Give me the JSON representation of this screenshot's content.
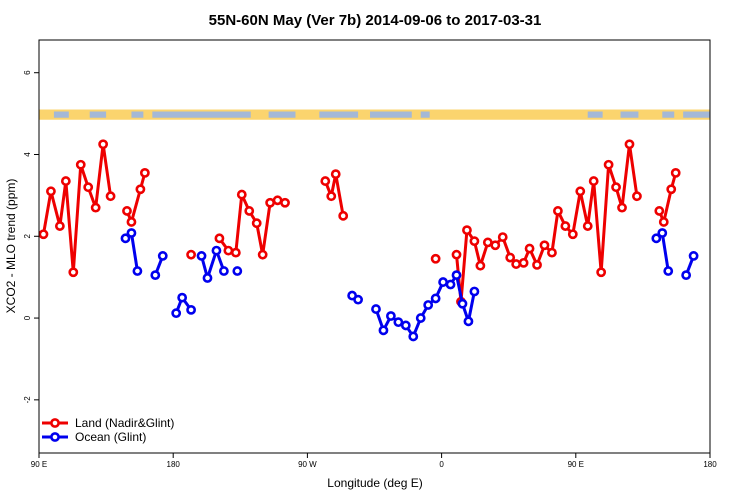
{
  "chart_data": {
    "type": "line",
    "title": "55N-60N May (Ver 7b)   2014-09-06 to 2017-03-31",
    "xlabel": "Longitude (deg E)",
    "ylabel": "XCO2 - MLO trend (ppm)",
    "xlim": [
      90,
      540
    ],
    "ylim": [
      -3.3,
      6.8
    ],
    "x_ticks": [
      {
        "value": 90,
        "label": "90 E"
      },
      {
        "value": 180,
        "label": "180"
      },
      {
        "value": 270,
        "label": "90 W"
      },
      {
        "value": 360,
        "label": "0"
      },
      {
        "value": 450,
        "label": "90 E"
      },
      {
        "value": 540,
        "label": "180"
      }
    ],
    "y_ticks": [
      {
        "value": -2,
        "label": "-2"
      },
      {
        "value": 0,
        "label": "0"
      },
      {
        "value": 2,
        "label": "2"
      },
      {
        "value": 4,
        "label": "4"
      },
      {
        "value": 6,
        "label": "6"
      }
    ],
    "grid": false,
    "legend_position": "bottom-left",
    "band": {
      "y_range": [
        4.85,
        5.1
      ],
      "land_color": "#fbd46e",
      "ocean_color": "#a4b8d6"
    },
    "series": [
      {
        "name": "Land (Nadir&Glint)",
        "color": "#ee0000",
        "segments": [
          [
            [
              93,
              2.05
            ],
            [
              98,
              3.1
            ],
            [
              104,
              2.25
            ],
            [
              108,
              3.35
            ],
            [
              113,
              1.12
            ],
            [
              118,
              3.75
            ],
            [
              123,
              3.2
            ],
            [
              128,
              2.7
            ],
            [
              133,
              4.25
            ],
            [
              138,
              2.98
            ]
          ],
          [
            [
              149,
              2.62
            ],
            [
              152,
              2.35
            ],
            [
              158,
              3.15
            ],
            [
              161,
              3.55
            ]
          ],
          [
            [
              192,
              1.55
            ]
          ],
          [
            [
              211,
              1.95
            ],
            [
              217,
              1.65
            ],
            [
              222,
              1.6
            ],
            [
              226,
              3.02
            ],
            [
              231,
              2.62
            ],
            [
              236,
              2.32
            ],
            [
              240,
              1.55
            ],
            [
              245,
              2.82
            ],
            [
              250,
              2.88
            ],
            [
              255,
              2.82
            ]
          ],
          [
            [
              282,
              3.35
            ],
            [
              286,
              2.98
            ],
            [
              289,
              3.52
            ],
            [
              294,
              2.5
            ]
          ],
          [
            [
              356,
              1.45
            ]
          ],
          [
            [
              370,
              1.55
            ],
            [
              373,
              0.4
            ],
            [
              377,
              2.15
            ],
            [
              382,
              1.88
            ],
            [
              386,
              1.28
            ],
            [
              391,
              1.85
            ],
            [
              396,
              1.78
            ],
            [
              401,
              1.98
            ],
            [
              406,
              1.48
            ],
            [
              410,
              1.32
            ],
            [
              415,
              1.35
            ],
            [
              419,
              1.7
            ],
            [
              424,
              1.3
            ],
            [
              429,
              1.78
            ],
            [
              434,
              1.6
            ],
            [
              438,
              2.62
            ],
            [
              443,
              2.25
            ],
            [
              448,
              2.05
            ],
            [
              453,
              3.1
            ],
            [
              458,
              2.25
            ],
            [
              462,
              3.35
            ],
            [
              467,
              1.12
            ],
            [
              472,
              3.75
            ],
            [
              477,
              3.2
            ],
            [
              481,
              2.7
            ],
            [
              486,
              4.25
            ],
            [
              491,
              2.98
            ]
          ],
          [
            [
              506,
              2.62
            ],
            [
              509,
              2.35
            ],
            [
              514,
              3.15
            ],
            [
              517,
              3.55
            ]
          ]
        ]
      },
      {
        "name": "Ocean (Glint)",
        "color": "#0000ee",
        "segments": [
          [
            [
              148,
              1.95
            ],
            [
              152,
              2.08
            ],
            [
              156,
              1.15
            ]
          ],
          [
            [
              168,
              1.05
            ],
            [
              173,
              1.52
            ]
          ],
          [
            [
              182,
              0.12
            ],
            [
              186,
              0.5
            ],
            [
              192,
              0.2
            ]
          ],
          [
            [
              199,
              1.52
            ],
            [
              203,
              0.98
            ],
            [
              209,
              1.65
            ],
            [
              214,
              1.15
            ]
          ],
          [
            [
              223,
              1.15
            ]
          ],
          [
            [
              300,
              0.55
            ],
            [
              304,
              0.45
            ]
          ],
          [
            [
              316,
              0.22
            ],
            [
              321,
              -0.3
            ],
            [
              326,
              0.05
            ],
            [
              331,
              -0.1
            ],
            [
              336,
              -0.18
            ],
            [
              341,
              -0.45
            ],
            [
              346,
              0.0
            ],
            [
              351,
              0.32
            ],
            [
              356,
              0.48
            ],
            [
              361,
              0.88
            ],
            [
              366,
              0.82
            ],
            [
              370,
              1.05
            ],
            [
              374,
              0.35
            ],
            [
              378,
              -0.08
            ],
            [
              382,
              0.65
            ]
          ],
          [
            [
              504,
              1.95
            ],
            [
              508,
              2.08
            ],
            [
              512,
              1.15
            ]
          ],
          [
            [
              524,
              1.05
            ],
            [
              529,
              1.52
            ]
          ]
        ]
      }
    ]
  }
}
